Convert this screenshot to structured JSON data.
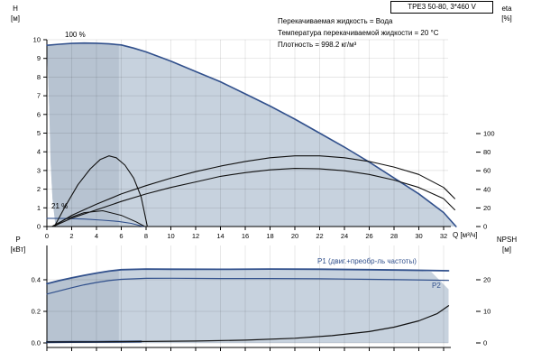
{
  "title_box": {
    "text": "TPE3 50-80, 3*460 V"
  },
  "info_lines": [
    "Перекачиваемая жидкость = Вода",
    "Температура перекачиваемой жидкости = 20 °C",
    "Плотность = 998.2 кг/м³"
  ],
  "labels": {
    "h_axis": [
      "H",
      "[м]"
    ],
    "eta_axis": [
      "eta",
      "[%]"
    ],
    "q_axis": "Q [м³/ч]",
    "p_axis": [
      "P",
      "[кВт]"
    ],
    "npsh_axis": [
      "NPSH",
      "[м]"
    ],
    "speed_100": "100 %",
    "speed_21": "21 %",
    "p1": "P1 (двиг.+преобр-ль частоты)",
    "p2": "P2"
  },
  "colors": {
    "curve_blue": "#31508c",
    "black": "#111111",
    "envelope": "#c7d2de",
    "envelope_dark": "#b7c3d1",
    "grid": "rgba(0,0,0,0.13)",
    "axis": "#000000"
  },
  "chart_data": [
    {
      "name": "head-efficiency-chart",
      "type": "line",
      "x": {
        "label": "Q [м³/ч]",
        "min": 0,
        "max": 33.6,
        "ticks": [
          [
            0,
            "0"
          ],
          [
            2,
            "2"
          ],
          [
            4,
            "4"
          ],
          [
            6,
            "6"
          ],
          [
            8,
            "8"
          ],
          [
            10,
            "10"
          ],
          [
            12,
            "12"
          ],
          [
            14,
            "14"
          ],
          [
            16,
            "16"
          ],
          [
            18,
            "18"
          ],
          [
            20,
            "20"
          ],
          [
            22,
            "22"
          ],
          [
            24,
            "24"
          ],
          [
            26,
            "26"
          ],
          [
            28,
            "28"
          ],
          [
            30,
            "30"
          ],
          [
            32,
            "32"
          ]
        ]
      },
      "y_left": {
        "label": "H [м]",
        "min": 0,
        "max": 10,
        "ticks": [
          [
            0,
            "0"
          ],
          [
            1,
            "1"
          ],
          [
            2,
            "2"
          ],
          [
            3,
            "3"
          ],
          [
            4,
            "4"
          ],
          [
            5,
            "5"
          ],
          [
            6,
            "6"
          ],
          [
            7,
            "7"
          ],
          [
            8,
            "8"
          ],
          [
            9,
            "9"
          ],
          [
            10,
            "10"
          ]
        ]
      },
      "y_right": {
        "label": "eta [%]",
        "min": 0,
        "max": 100,
        "ticks": [
          [
            0,
            "0"
          ],
          [
            20,
            "20"
          ],
          [
            40,
            "40"
          ],
          [
            60,
            "60"
          ],
          [
            80,
            "80"
          ],
          [
            100,
            "100"
          ]
        ]
      },
      "regions": [
        {
          "name": "operating-envelope",
          "points": [
            [
              0,
              9.7
            ],
            [
              1,
              9.76
            ],
            [
              2,
              9.8
            ],
            [
              3,
              9.82
            ],
            [
              4,
              9.81
            ],
            [
              5,
              9.78
            ],
            [
              6,
              9.72
            ],
            [
              7,
              9.55
            ],
            [
              8,
              9.35
            ],
            [
              9,
              9.1
            ],
            [
              10,
              8.85
            ],
            [
              12,
              8.3
            ],
            [
              14,
              7.75
            ],
            [
              16,
              7.1
            ],
            [
              18,
              6.45
            ],
            [
              20,
              5.75
            ],
            [
              22,
              5.0
            ],
            [
              24,
              4.25
            ],
            [
              26,
              3.45
            ],
            [
              28,
              2.6
            ],
            [
              30,
              1.75
            ],
            [
              32,
              0.75
            ],
            [
              33,
              0
            ],
            [
              0.7,
              0
            ],
            [
              0.45,
              1.5
            ],
            [
              0.3,
              3.5
            ],
            [
              0.2,
              6
            ],
            [
              0.1,
              8
            ]
          ]
        },
        {
          "name": "low-flow-band",
          "points": [
            [
              0,
              9.7
            ],
            [
              1,
              9.76
            ],
            [
              2,
              9.8
            ],
            [
              3,
              9.82
            ],
            [
              4,
              9.81
            ],
            [
              5,
              9.78
            ],
            [
              5.8,
              9.73
            ],
            [
              5.8,
              0
            ],
            [
              0.7,
              0
            ],
            [
              0.45,
              1.5
            ],
            [
              0.3,
              3.5
            ],
            [
              0.2,
              6
            ],
            [
              0.1,
              8
            ]
          ]
        }
      ],
      "series": [
        {
          "name": "head-100-percent",
          "label": "100 %",
          "axis": "left",
          "color": "blue",
          "width": 1.6,
          "points": [
            [
              0,
              9.7
            ],
            [
              1,
              9.76
            ],
            [
              2,
              9.8
            ],
            [
              3,
              9.82
            ],
            [
              4,
              9.81
            ],
            [
              5,
              9.78
            ],
            [
              6,
              9.72
            ],
            [
              7,
              9.55
            ],
            [
              8,
              9.35
            ],
            [
              9,
              9.1
            ],
            [
              10,
              8.85
            ],
            [
              12,
              8.3
            ],
            [
              14,
              7.75
            ],
            [
              16,
              7.1
            ],
            [
              18,
              6.45
            ],
            [
              20,
              5.75
            ],
            [
              22,
              5.0
            ],
            [
              24,
              4.25
            ],
            [
              26,
              3.45
            ],
            [
              28,
              2.6
            ],
            [
              30,
              1.75
            ],
            [
              32,
              0.75
            ],
            [
              33,
              0
            ]
          ]
        },
        {
          "name": "head-21-percent",
          "label": "21 %",
          "axis": "left",
          "color": "blue",
          "width": 1.1,
          "points": [
            [
              0,
              0.44
            ],
            [
              1.5,
              0.43
            ],
            [
              3,
              0.4
            ],
            [
              4.5,
              0.34
            ],
            [
              5.8,
              0.27
            ],
            [
              6.8,
              0.17
            ],
            [
              7.8,
              0
            ]
          ]
        },
        {
          "name": "eta-pump",
          "axis": "right",
          "color": "black",
          "width": 1.1,
          "points": [
            [
              0.5,
              0
            ],
            [
              2,
              12
            ],
            [
              4,
              24
            ],
            [
              6,
              35
            ],
            [
              8,
              44
            ],
            [
              10,
              52
            ],
            [
              12,
              59
            ],
            [
              14,
              65
            ],
            [
              16,
              70
            ],
            [
              18,
              74
            ],
            [
              20,
              76
            ],
            [
              22,
              76
            ],
            [
              24,
              74
            ],
            [
              26,
              70
            ],
            [
              28,
              64
            ],
            [
              30,
              56
            ],
            [
              32,
              42
            ],
            [
              32.9,
              30
            ]
          ]
        },
        {
          "name": "eta-total",
          "axis": "right",
          "color": "black",
          "width": 1.1,
          "points": [
            [
              0.5,
              0
            ],
            [
              2,
              9
            ],
            [
              4,
              18
            ],
            [
              6,
              27
            ],
            [
              8,
              35
            ],
            [
              10,
              42
            ],
            [
              12,
              48
            ],
            [
              14,
              54
            ],
            [
              16,
              58
            ],
            [
              18,
              61
            ],
            [
              20,
              62.5
            ],
            [
              22,
              62
            ],
            [
              24,
              60
            ],
            [
              26,
              56
            ],
            [
              28,
              50
            ],
            [
              30,
              42
            ],
            [
              32,
              30
            ],
            [
              32.9,
              18
            ]
          ]
        },
        {
          "name": "eta-reduced-speed",
          "axis": "right",
          "color": "black",
          "width": 1.1,
          "points": [
            [
              0.6,
              0
            ],
            [
              1.5,
              22
            ],
            [
              2.5,
              45
            ],
            [
              3.5,
              62
            ],
            [
              4.3,
              72
            ],
            [
              5,
              76
            ],
            [
              5.6,
              74
            ],
            [
              6.3,
              66
            ],
            [
              7,
              52
            ],
            [
              7.6,
              32
            ],
            [
              8.1,
              0
            ]
          ]
        },
        {
          "name": "eta-reduced-small",
          "axis": "right",
          "color": "black",
          "width": 1.0,
          "points": [
            [
              0.4,
              0
            ],
            [
              1.5,
              8
            ],
            [
              3,
              15
            ],
            [
              4.5,
              17
            ],
            [
              6,
              12
            ],
            [
              7.2,
              5
            ],
            [
              7.9,
              0
            ]
          ]
        }
      ]
    },
    {
      "name": "power-npsh-chart",
      "type": "line",
      "x": {
        "label": "",
        "min": 0,
        "max": 33.6,
        "ticks": [
          [
            0,
            ""
          ],
          [
            2,
            ""
          ],
          [
            4,
            ""
          ],
          [
            6,
            ""
          ],
          [
            8,
            ""
          ],
          [
            10,
            ""
          ],
          [
            12,
            ""
          ],
          [
            14,
            ""
          ],
          [
            16,
            ""
          ],
          [
            18,
            ""
          ],
          [
            20,
            ""
          ],
          [
            22,
            ""
          ],
          [
            24,
            ""
          ],
          [
            26,
            ""
          ],
          [
            28,
            ""
          ],
          [
            30,
            ""
          ],
          [
            32,
            ""
          ]
        ]
      },
      "y_left": {
        "label": "P [кВт]",
        "min": 0,
        "max": 0.55,
        "ticks": [
          [
            0,
            "0.0"
          ],
          [
            0.2,
            "0.2"
          ],
          [
            0.4,
            "0.4"
          ]
        ]
      },
      "y_right": {
        "label": "NPSH [м]",
        "min": 0,
        "max": 27.5,
        "ticks": [
          [
            0,
            "0"
          ],
          [
            10,
            "10"
          ],
          [
            20,
            "20"
          ]
        ]
      },
      "regions": [
        {
          "name": "power-envelope",
          "points": [
            [
              0,
              0.375
            ],
            [
              1,
              0.395
            ],
            [
              2,
              0.412
            ],
            [
              3,
              0.428
            ],
            [
              4,
              0.442
            ],
            [
              5,
              0.455
            ],
            [
              6,
              0.464
            ],
            [
              8,
              0.468
            ],
            [
              14,
              0.466
            ],
            [
              20,
              0.468
            ],
            [
              26,
              0.464
            ],
            [
              29,
              0.461
            ],
            [
              31,
              0.45
            ],
            [
              32.4,
              0.34
            ],
            [
              32.4,
              0
            ],
            [
              0,
              0
            ]
          ]
        },
        {
          "name": "power-low-flow-band",
          "points": [
            [
              0,
              0.375
            ],
            [
              1,
              0.395
            ],
            [
              2,
              0.412
            ],
            [
              3,
              0.428
            ],
            [
              4,
              0.442
            ],
            [
              5,
              0.455
            ],
            [
              5.8,
              0.462
            ],
            [
              5.8,
              0
            ],
            [
              0,
              0
            ]
          ]
        }
      ],
      "series": [
        {
          "name": "p1-power",
          "label": "P1 (двиг.+преобр-ль частоты)",
          "axis": "left",
          "color": "blue",
          "width": 1.8,
          "points": [
            [
              0,
              0.375
            ],
            [
              1,
              0.395
            ],
            [
              2,
              0.412
            ],
            [
              3,
              0.428
            ],
            [
              4,
              0.442
            ],
            [
              5,
              0.455
            ],
            [
              6,
              0.464
            ],
            [
              8,
              0.468
            ],
            [
              10,
              0.467
            ],
            [
              14,
              0.466
            ],
            [
              18,
              0.468
            ],
            [
              22,
              0.467
            ],
            [
              26,
              0.464
            ],
            [
              29,
              0.461
            ],
            [
              32.4,
              0.457
            ]
          ]
        },
        {
          "name": "p2-power",
          "label": "P2",
          "axis": "left",
          "color": "blue",
          "width": 1.2,
          "points": [
            [
              0,
              0.31
            ],
            [
              1,
              0.33
            ],
            [
              2,
              0.35
            ],
            [
              3,
              0.368
            ],
            [
              4,
              0.383
            ],
            [
              5,
              0.395
            ],
            [
              6,
              0.403
            ],
            [
              8,
              0.409
            ],
            [
              10,
              0.41
            ],
            [
              14,
              0.408
            ],
            [
              18,
              0.408
            ],
            [
              22,
              0.406
            ],
            [
              26,
              0.403
            ],
            [
              29,
              0.4
            ],
            [
              32.4,
              0.396
            ]
          ]
        },
        {
          "name": "p-min-speed",
          "axis": "left",
          "color": "blue",
          "width": 2.2,
          "points": [
            [
              0,
              0.005
            ],
            [
              2,
              0.006
            ],
            [
              4,
              0.007
            ],
            [
              6,
              0.008
            ],
            [
              7.6,
              0.009
            ]
          ]
        },
        {
          "name": "npsh",
          "axis": "right",
          "color": "black",
          "width": 1.2,
          "points": [
            [
              0,
              0.3
            ],
            [
              4,
              0.35
            ],
            [
              8,
              0.45
            ],
            [
              12,
              0.6
            ],
            [
              16,
              0.9
            ],
            [
              20,
              1.5
            ],
            [
              23,
              2.3
            ],
            [
              26,
              3.6
            ],
            [
              28,
              5
            ],
            [
              30,
              7
            ],
            [
              31.5,
              9.3
            ],
            [
              32.4,
              11.8
            ]
          ]
        }
      ]
    }
  ]
}
